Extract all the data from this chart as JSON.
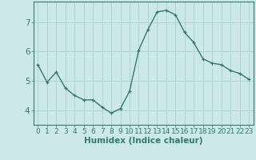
{
  "x": [
    0,
    1,
    2,
    3,
    4,
    5,
    6,
    7,
    8,
    9,
    10,
    11,
    12,
    13,
    14,
    15,
    16,
    17,
    18,
    19,
    20,
    21,
    22,
    23
  ],
  "y": [
    5.55,
    4.95,
    5.3,
    4.75,
    4.5,
    4.35,
    4.35,
    4.1,
    3.9,
    4.05,
    4.65,
    6.05,
    6.75,
    7.35,
    7.4,
    7.25,
    6.65,
    6.3,
    5.75,
    5.6,
    5.55,
    5.35,
    5.25,
    5.05
  ],
  "line_color": "#2e7d6e",
  "marker": "+",
  "bg_color": "#cce8e8",
  "grid_color": "#aed4d4",
  "axis_color": "#2e7d6e",
  "xlabel": "Humidex (Indice chaleur)",
  "xlim": [
    -0.5,
    23.5
  ],
  "ylim": [
    3.5,
    7.7
  ],
  "yticks": [
    4,
    5,
    6,
    7
  ],
  "xticks": [
    0,
    1,
    2,
    3,
    4,
    5,
    6,
    7,
    8,
    9,
    10,
    11,
    12,
    13,
    14,
    15,
    16,
    17,
    18,
    19,
    20,
    21,
    22,
    23
  ],
  "xlabel_fontsize": 7.5,
  "tick_fontsize": 6.5,
  "ytick_fontsize": 7.5,
  "linewidth": 1.0,
  "markersize": 3.5,
  "markeredgewidth": 0.9
}
